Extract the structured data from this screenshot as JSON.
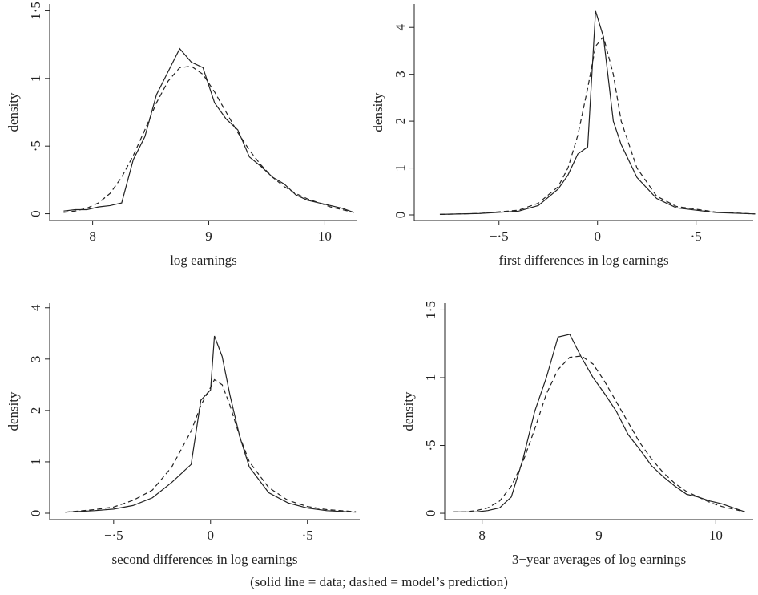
{
  "chart_data": [
    {
      "type": "line",
      "xlabel": "log earnings",
      "ylabel": "density",
      "x": [
        7.75,
        7.85,
        7.95,
        8.05,
        8.15,
        8.25,
        8.35,
        8.45,
        8.55,
        8.65,
        8.75,
        8.85,
        8.95,
        9.05,
        9.15,
        9.25,
        9.35,
        9.45,
        9.55,
        9.65,
        9.75,
        9.85,
        9.95,
        10.05,
        10.15,
        10.25
      ],
      "series": [
        {
          "color": "#222222",
          "dashed": false,
          "values": [
            0.02,
            0.03,
            0.03,
            0.05,
            0.06,
            0.08,
            0.4,
            0.57,
            0.88,
            1.05,
            1.22,
            1.12,
            1.08,
            0.82,
            0.7,
            0.62,
            0.42,
            0.35,
            0.27,
            0.22,
            0.14,
            0.1,
            0.08,
            0.06,
            0.04,
            0.01
          ]
        },
        {
          "color": "#222222",
          "dashed": true,
          "values": [
            0.01,
            0.02,
            0.04,
            0.08,
            0.15,
            0.27,
            0.43,
            0.62,
            0.82,
            0.98,
            1.08,
            1.09,
            1.03,
            0.9,
            0.75,
            0.6,
            0.47,
            0.36,
            0.27,
            0.2,
            0.15,
            0.11,
            0.08,
            0.05,
            0.03,
            0.01
          ]
        }
      ],
      "xlim": [
        7.63,
        10.28
      ],
      "ylim": [
        -0.05,
        1.55
      ],
      "xticks": [
        8,
        9,
        10
      ],
      "yticks": [
        0,
        {
          "value": 0.5,
          "label": "·5"
        },
        1,
        {
          "value": 1.5,
          "label": "1·5"
        }
      ]
    },
    {
      "type": "line",
      "xlabel": "first differences in log earnings",
      "ylabel": "density",
      "x": [
        -0.8,
        -0.6,
        -0.4,
        -0.3,
        -0.2,
        -0.15,
        -0.1,
        -0.05,
        -0.01,
        0.03,
        0.08,
        0.12,
        0.2,
        0.3,
        0.4,
        0.6,
        0.8
      ],
      "series": [
        {
          "color": "#222222",
          "dashed": false,
          "values": [
            0.01,
            0.03,
            0.08,
            0.2,
            0.55,
            0.85,
            1.3,
            1.45,
            4.35,
            3.8,
            2.0,
            1.5,
            0.8,
            0.35,
            0.15,
            0.05,
            0.02
          ]
        },
        {
          "color": "#222222",
          "dashed": true,
          "values": [
            0.01,
            0.03,
            0.1,
            0.25,
            0.6,
            1.0,
            1.7,
            2.7,
            3.6,
            3.8,
            3.0,
            2.0,
            1.0,
            0.4,
            0.18,
            0.06,
            0.02
          ]
        }
      ],
      "xlim": [
        -0.93,
        0.79
      ],
      "ylim": [
        -0.12,
        4.5
      ],
      "xticks": [
        {
          "value": -0.5,
          "label": "−·5"
        },
        0,
        {
          "value": 0.5,
          "label": "·5"
        }
      ],
      "yticks": [
        0,
        1,
        2,
        3,
        4
      ]
    },
    {
      "type": "line",
      "xlabel": "second differences in log earnings",
      "ylabel": "density",
      "x": [
        -0.75,
        -0.6,
        -0.5,
        -0.4,
        -0.3,
        -0.2,
        -0.1,
        -0.05,
        0,
        0.02,
        0.06,
        0.1,
        0.15,
        0.2,
        0.3,
        0.4,
        0.5,
        0.6,
        0.75
      ],
      "series": [
        {
          "color": "#222222",
          "dashed": false,
          "values": [
            0.02,
            0.05,
            0.08,
            0.15,
            0.3,
            0.6,
            0.95,
            2.2,
            2.4,
            3.45,
            3.05,
            2.3,
            1.5,
            0.9,
            0.4,
            0.2,
            0.1,
            0.05,
            0.02
          ]
        },
        {
          "color": "#222222",
          "dashed": true,
          "values": [
            0.02,
            0.07,
            0.12,
            0.25,
            0.45,
            0.9,
            1.6,
            2.1,
            2.45,
            2.6,
            2.5,
            2.1,
            1.5,
            1.0,
            0.5,
            0.25,
            0.13,
            0.07,
            0.03
          ]
        }
      ],
      "xlim": [
        -0.83,
        0.77
      ],
      "ylim": [
        -0.125,
        4.09
      ],
      "xticks": [
        {
          "value": -0.5,
          "label": "−·5"
        },
        0,
        {
          "value": 0.5,
          "label": "·5"
        }
      ],
      "yticks": [
        0,
        1,
        2,
        3,
        4
      ]
    },
    {
      "type": "line",
      "xlabel": "3−year averages of log earnings",
      "ylabel": "density",
      "x": [
        7.75,
        7.85,
        7.95,
        8.05,
        8.15,
        8.25,
        8.35,
        8.45,
        8.55,
        8.65,
        8.75,
        8.85,
        8.95,
        9.05,
        9.15,
        9.25,
        9.35,
        9.45,
        9.55,
        9.65,
        9.75,
        9.85,
        9.95,
        10.05,
        10.15,
        10.25
      ],
      "series": [
        {
          "color": "#222222",
          "dashed": false,
          "values": [
            0.01,
            0.01,
            0.01,
            0.02,
            0.04,
            0.12,
            0.4,
            0.75,
            1.0,
            1.3,
            1.32,
            1.15,
            1.0,
            0.88,
            0.75,
            0.58,
            0.47,
            0.35,
            0.27,
            0.2,
            0.14,
            0.12,
            0.09,
            0.07,
            0.04,
            0.01
          ]
        },
        {
          "color": "#222222",
          "dashed": true,
          "values": [
            0.01,
            0.01,
            0.02,
            0.04,
            0.09,
            0.2,
            0.38,
            0.62,
            0.88,
            1.06,
            1.15,
            1.16,
            1.1,
            0.97,
            0.82,
            0.67,
            0.52,
            0.4,
            0.3,
            0.22,
            0.16,
            0.12,
            0.08,
            0.05,
            0.03,
            0.01
          ]
        }
      ],
      "xlim": [
        7.68,
        10.32
      ],
      "ylim": [
        -0.047,
        1.55
      ],
      "xticks": [
        8,
        9,
        10
      ],
      "yticks": [
        0,
        {
          "value": 0.5,
          "label": "·5"
        },
        1,
        {
          "value": 1.5,
          "label": "1·5"
        }
      ]
    }
  ],
  "caption": "(solid line = data; dashed = model’s prediction)"
}
